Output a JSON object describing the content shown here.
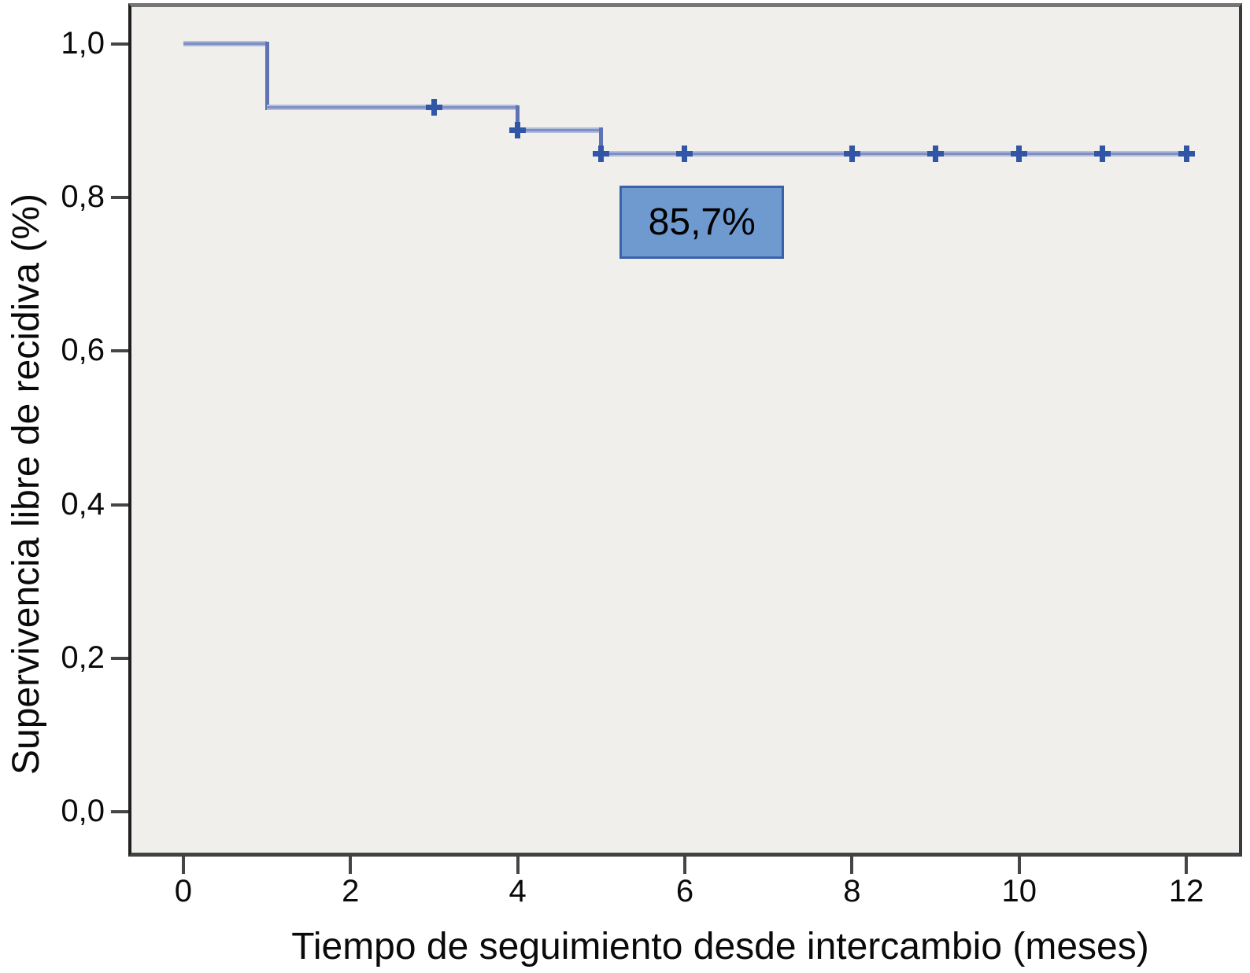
{
  "figure": {
    "background": "#ffffff",
    "plot_bg": "#f0efec",
    "frame_color": "#424242",
    "tick_color": "#454545",
    "curve_halo": "#b2bcdc",
    "curve_core": "#7e8fc3",
    "curve_step": "#5d73b4",
    "censor_color": "#3156a6",
    "annotation_fill": "#6f9ad0",
    "annotation_border": "#3a62ab"
  },
  "chart_data": {
    "type": "line",
    "subtype": "kaplan_meier_step",
    "title": "",
    "xlabel": "Tiempo de seguimiento desde intercambio (meses)",
    "ylabel": "Supervivencia libre de recidiva (%)",
    "xlim": [
      -0.62,
      12.63
    ],
    "ylim": [
      -0.053,
      1.048
    ],
    "grid": false,
    "legend": null,
    "xticks": {
      "values": [
        0,
        2,
        4,
        6,
        8,
        10,
        12
      ],
      "labels": [
        "0",
        "2",
        "4",
        "6",
        "8",
        "10",
        "12"
      ]
    },
    "yticks": {
      "values": [
        0.0,
        0.2,
        0.4,
        0.6,
        0.8,
        1.0
      ],
      "labels": [
        "0,0",
        "0,2",
        "0,4",
        "0,6",
        "0,8",
        "1,0"
      ]
    },
    "series": [
      {
        "name": "supervivencia-libre-de-recidiva",
        "step_points": [
          [
            0,
            1.0
          ],
          [
            1,
            1.0
          ],
          [
            1,
            0.917
          ],
          [
            4,
            0.917
          ],
          [
            4,
            0.888
          ],
          [
            5,
            0.888
          ],
          [
            5,
            0.857
          ],
          [
            12.07,
            0.857
          ]
        ],
        "events": [
          {
            "time": 1,
            "survival_after": 0.917
          },
          {
            "time": 4,
            "survival_after": 0.888
          },
          {
            "time": 5,
            "survival_after": 0.857
          }
        ],
        "censor_marks": [
          [
            3,
            0.917
          ],
          [
            4,
            0.888
          ],
          [
            5,
            0.857
          ],
          [
            6,
            0.857
          ],
          [
            8,
            0.857
          ],
          [
            9,
            0.857
          ],
          [
            10,
            0.857
          ],
          [
            11,
            0.857
          ],
          [
            12,
            0.857
          ]
        ]
      }
    ],
    "annotation": {
      "text": "85,7%",
      "x1": 5.22,
      "y1": 0.815,
      "x2": 7.19,
      "y2": 0.72
    }
  }
}
